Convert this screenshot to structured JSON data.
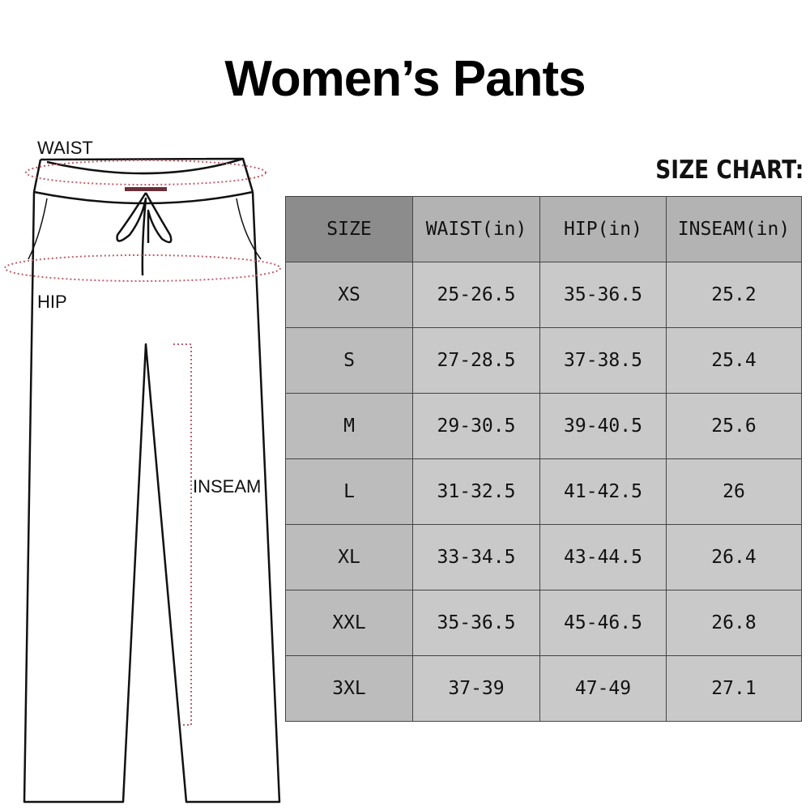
{
  "title": "Women’s Pants",
  "chart_label": "SIZE CHART:",
  "diagram": {
    "waist": "WAIST",
    "hip": "HIP",
    "inseam": "INSEAM"
  },
  "colors": {
    "measure_line": "#c0606a",
    "header_dark": "#8c8c8c",
    "header": "#b3b3b3",
    "cell": "#c9c9c9"
  },
  "table": {
    "headers": [
      "SIZE",
      "WAIST(in)",
      "HIP(in)",
      "INSEAM(in)"
    ],
    "rows": [
      [
        "XS",
        "25-26.5",
        "35-36.5",
        "25.2"
      ],
      [
        "S",
        "27-28.5",
        "37-38.5",
        "25.4"
      ],
      [
        "M",
        "29-30.5",
        "39-40.5",
        "25.6"
      ],
      [
        "L",
        "31-32.5",
        "41-42.5",
        "26"
      ],
      [
        "XL",
        "33-34.5",
        "43-44.5",
        "26.4"
      ],
      [
        "XXL",
        "35-36.5",
        "45-46.5",
        "26.8"
      ],
      [
        "3XL",
        "37-39",
        "47-49",
        "27.1"
      ]
    ]
  }
}
